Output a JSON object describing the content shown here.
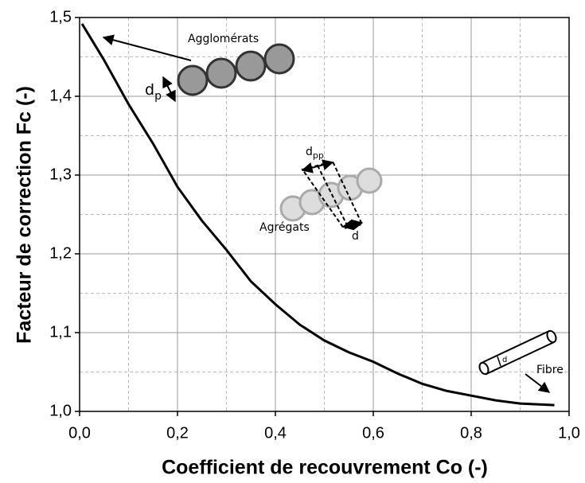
{
  "chart_data": {
    "type": "line",
    "x_label": "Coefficient de recouvrement Co (-)",
    "y_label": "Facteur de correction Fc (-)",
    "x": [
      0.005,
      0.05,
      0.1,
      0.15,
      0.2,
      0.25,
      0.3,
      0.35,
      0.4,
      0.45,
      0.5,
      0.55,
      0.6,
      0.65,
      0.7,
      0.75,
      0.8,
      0.85,
      0.9,
      0.97
    ],
    "values": [
      1.492,
      1.446,
      1.39,
      1.34,
      1.285,
      1.242,
      1.205,
      1.165,
      1.136,
      1.11,
      1.09,
      1.075,
      1.063,
      1.048,
      1.035,
      1.026,
      1.02,
      1.014,
      1.01,
      1.008
    ],
    "color": "#000000",
    "xlim": [
      0,
      1
    ],
    "ylim": [
      1.0,
      1.5
    ],
    "xticks": [
      {
        "value": 0,
        "label": "0,0"
      },
      {
        "value": 0.2,
        "label": "0,2"
      },
      {
        "value": 0.4,
        "label": "0,4"
      },
      {
        "value": 0.6,
        "label": "0,6"
      },
      {
        "value": 0.8,
        "label": "0,8"
      },
      {
        "value": 1,
        "label": "1,0"
      }
    ],
    "yticks": [
      {
        "value": 1.0,
        "label": "1,0"
      },
      {
        "value": 1.1,
        "label": "1,1"
      },
      {
        "value": 1.2,
        "label": "1,2"
      },
      {
        "value": 1.3,
        "label": "1,3"
      },
      {
        "value": 1.4,
        "label": "1,4"
      },
      {
        "value": 1.5,
        "label": "1,5"
      }
    ],
    "minor_xticks": [
      0.1,
      0.3,
      0.5,
      0.7,
      0.9
    ],
    "minor_yticks": [
      1.05,
      1.15,
      1.25,
      1.35,
      1.45
    ],
    "grid": true,
    "annotations": [
      {
        "text": "Agglomérats"
      },
      {
        "text": "d",
        "sub": "p"
      },
      {
        "text": "d",
        "sub": "pp"
      },
      {
        "text": "Agrégats"
      },
      {
        "text": "d"
      },
      {
        "text": "d"
      },
      {
        "text": "Fibre"
      }
    ]
  }
}
